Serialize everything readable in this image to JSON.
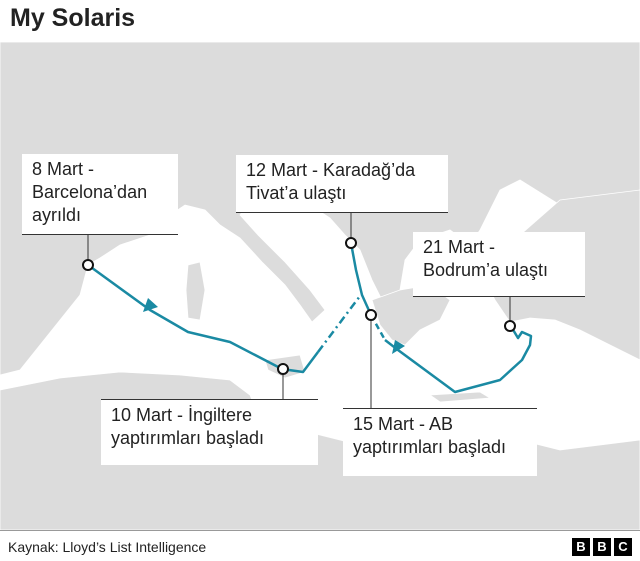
{
  "title": "My Solaris",
  "colors": {
    "route": "#1a8aa3",
    "land": "#dcdcdc",
    "sea": "#ffffff"
  },
  "labels": [
    {
      "line1": "8 Mart -",
      "line2": "Barcelona’dan",
      "line3": "ayrıldı"
    },
    {
      "line1": "12 Mart - Karadağ’da",
      "line2": "Tivat’a ulaştı"
    },
    {
      "line1": "21 Mart -",
      "line2": "Bodrum’a ulaştı"
    },
    {
      "line1": "10 Mart - İngiltere",
      "line2": "yaptırımları başladı"
    },
    {
      "line1": "15 Mart - AB",
      "line2": "yaptırımları başladı"
    }
  ],
  "footer": {
    "source": "Kaynak: Lloyd’s List Intelligence",
    "logo": [
      "B",
      "B",
      "C"
    ]
  }
}
